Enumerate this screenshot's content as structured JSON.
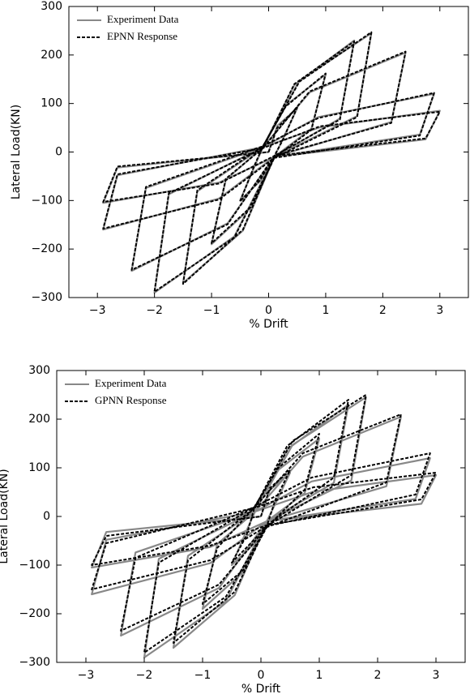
{
  "chart_data": [
    {
      "type": "line",
      "xlabel": "% Drift",
      "ylabel": "Lateral Load(KN)",
      "xlim": [
        -3.5,
        3.5
      ],
      "ylim": [
        -300,
        300
      ],
      "xticks": [
        {
          "value": -3,
          "label": "−3"
        },
        {
          "value": -2,
          "label": "−2"
        },
        {
          "value": -1,
          "label": "−1"
        },
        0,
        1,
        2,
        3
      ],
      "yticks": [
        {
          "value": -300,
          "label": "−300"
        },
        {
          "value": -200,
          "label": "−200"
        },
        {
          "value": -100,
          "label": "−100"
        },
        0,
        100,
        200,
        300
      ],
      "legend": "upper left",
      "x": [
        0,
        0.15,
        0.5,
        0.25,
        0.1,
        -0.15,
        -0.5,
        -0.25,
        -0.1,
        0.3,
        1,
        0.75,
        0.1,
        -0.3,
        -1,
        -0.75,
        -0.1,
        0.45,
        1.5,
        1.25,
        0.1,
        -0.45,
        -1.5,
        -1.25,
        -0.1,
        0.54,
        1.8,
        1.55,
        0.1,
        -0.6,
        -2,
        -1.75,
        -0.1,
        0.72,
        2.4,
        2.15,
        0.1,
        -0.72,
        -2.4,
        -2.15,
        -0.1,
        0.87,
        2.9,
        2.65,
        0.1,
        -0.87,
        -2.9,
        -2.65,
        -0.1,
        0.9,
        3,
        2.75,
        0.1,
        -0.87,
        -2.9,
        -2.65,
        0
      ],
      "series": [
        {
          "name": "Experiment Data",
          "color": "#888888",
          "linestyle": "solid",
          "values": [
            0,
            54,
            90,
            27,
            -10,
            -60,
            -100,
            -30,
            10,
            96,
            160,
            48,
            -10,
            -114,
            -190,
            -57,
            10,
            138,
            230,
            69,
            -10,
            -162,
            -270,
            -81,
            10,
            147,
            245,
            74,
            -10,
            -174,
            -290,
            -87,
            10,
            123,
            205,
            62,
            -10,
            -147,
            -245,
            -74,
            10,
            72,
            120,
            36,
            -10,
            -96,
            -160,
            -48,
            10,
            51,
            85,
            26,
            -10,
            -63,
            -105,
            -32,
            0
          ]
        },
        {
          "name": "EPNN Response",
          "color": "#000000",
          "linestyle": "dashed",
          "values": [
            0,
            50,
            92,
            25,
            -8,
            -58,
            -102,
            -28,
            12,
            94,
            162,
            46,
            -12,
            -112,
            -188,
            -55,
            8,
            140,
            228,
            67,
            -8,
            -160,
            -272,
            -79,
            12,
            145,
            247,
            72,
            -12,
            -176,
            -288,
            -85,
            8,
            125,
            207,
            60,
            -8,
            -149,
            -243,
            -72,
            12,
            70,
            122,
            34,
            -12,
            -98,
            -158,
            -46,
            8,
            53,
            83,
            28,
            -8,
            -65,
            -103,
            -30,
            0
          ]
        }
      ]
    },
    {
      "type": "line",
      "xlabel": "% Drift",
      "ylabel": "Lateral Load(KN)",
      "xlim": [
        -3.5,
        3.5
      ],
      "ylim": [
        -300,
        300
      ],
      "xticks": [
        {
          "value": -3,
          "label": "−3"
        },
        {
          "value": -2,
          "label": "−2"
        },
        {
          "value": -1,
          "label": "−1"
        },
        0,
        1,
        2,
        3
      ],
      "yticks": [
        {
          "value": -300,
          "label": "−300"
        },
        {
          "value": -200,
          "label": "−200"
        },
        {
          "value": -100,
          "label": "−100"
        },
        0,
        100,
        200,
        300
      ],
      "legend": "upper left",
      "x": [
        0,
        0.15,
        0.5,
        0.25,
        0.1,
        -0.15,
        -0.5,
        -0.25,
        -0.1,
        0.3,
        1,
        0.75,
        0.1,
        -0.3,
        -1,
        -0.75,
        -0.1,
        0.45,
        1.5,
        1.25,
        0.1,
        -0.45,
        -1.5,
        -1.25,
        -0.1,
        0.54,
        1.8,
        1.55,
        0.1,
        -0.6,
        -2,
        -1.75,
        -0.1,
        0.72,
        2.4,
        2.15,
        0.1,
        -0.72,
        -2.4,
        -2.15,
        -0.1,
        0.87,
        2.9,
        2.65,
        0.1,
        -0.87,
        -2.9,
        -2.65,
        -0.1,
        0.9,
        3,
        2.75,
        0.1,
        -0.87,
        -2.9,
        -2.65,
        0
      ],
      "series": [
        {
          "name": "Experiment Data",
          "color": "#888888",
          "linestyle": "solid",
          "values": [
            0,
            54,
            90,
            27,
            -10,
            -60,
            -100,
            -30,
            10,
            96,
            160,
            48,
            -10,
            -114,
            -190,
            -57,
            10,
            138,
            230,
            69,
            -10,
            -162,
            -270,
            -81,
            10,
            147,
            245,
            74,
            -10,
            -174,
            -290,
            -87,
            10,
            123,
            205,
            62,
            -10,
            -147,
            -245,
            -74,
            10,
            72,
            120,
            36,
            -10,
            -96,
            -160,
            -48,
            10,
            51,
            85,
            26,
            -10,
            -63,
            -105,
            -32,
            0
          ]
        },
        {
          "name": "GPNN Response",
          "color": "#000000",
          "linestyle": "dashed",
          "values": [
            0,
            58,
            95,
            35,
            -20,
            -52,
            -95,
            -40,
            22,
            100,
            170,
            55,
            -22,
            -110,
            -180,
            -65,
            20,
            145,
            240,
            80,
            -18,
            -155,
            -260,
            -90,
            18,
            155,
            250,
            85,
            -20,
            -165,
            -280,
            -95,
            20,
            130,
            210,
            70,
            -22,
            -140,
            -235,
            -85,
            20,
            80,
            130,
            45,
            -20,
            -90,
            -150,
            -55,
            18,
            60,
            90,
            35,
            -18,
            -60,
            -100,
            -40,
            0
          ]
        }
      ]
    }
  ]
}
